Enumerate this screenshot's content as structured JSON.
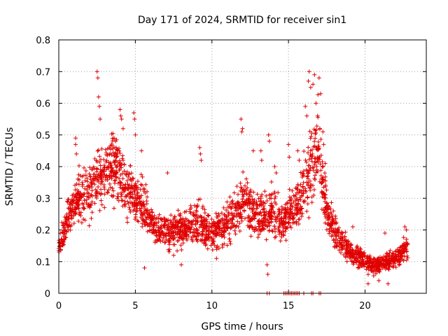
{
  "chart_data": {
    "type": "scatter",
    "title": "Day 171 of 2024, SRMTID for receiver sin1",
    "xlabel": "GPS time / hours",
    "ylabel": "SRMTID / TECUs",
    "xlim": [
      0,
      24
    ],
    "ylim": [
      0,
      0.8
    ],
    "xticks": [
      0,
      5,
      10,
      15,
      20
    ],
    "xtick_labels": [
      "0",
      "5",
      "10",
      "15",
      "20"
    ],
    "yticks": [
      0,
      0.1,
      0.2,
      0.3,
      0.4,
      0.5,
      0.6,
      0.7,
      0.8
    ],
    "ytick_labels": [
      "0",
      "0.1",
      "0.2",
      "0.3",
      "0.4",
      "0.5",
      "0.6",
      "0.7",
      "0.8"
    ],
    "grid": true,
    "marker": "+",
    "color": "#e00000",
    "series": [
      {
        "name": "SRMTID",
        "trend": {
          "x": [
            0,
            0.5,
            1,
            1.5,
            2,
            2.5,
            3,
            3.5,
            4,
            4.5,
            5,
            5.5,
            6,
            6.5,
            7,
            7.5,
            8,
            8.5,
            9,
            9.5,
            10,
            10.5,
            11,
            11.5,
            12,
            12.5,
            13,
            13.5,
            14,
            14.5,
            15,
            15.5,
            16,
            16.5,
            17,
            17.5,
            18,
            18.5,
            19,
            19.5,
            20,
            20.5,
            21,
            21.5,
            22,
            22.5,
            22.8
          ],
          "y": [
            0.15,
            0.22,
            0.28,
            0.31,
            0.33,
            0.36,
            0.38,
            0.4,
            0.37,
            0.33,
            0.3,
            0.28,
            0.23,
            0.2,
            0.19,
            0.2,
            0.2,
            0.21,
            0.22,
            0.2,
            0.19,
            0.21,
            0.22,
            0.25,
            0.3,
            0.27,
            0.25,
            0.24,
            0.25,
            0.22,
            0.25,
            0.28,
            0.32,
            0.4,
            0.45,
            0.25,
            0.2,
            0.16,
            0.13,
            0.12,
            0.1,
            0.09,
            0.09,
            0.1,
            0.11,
            0.13,
            0.15
          ],
          "spread": [
            0.03,
            0.05,
            0.07,
            0.07,
            0.08,
            0.09,
            0.09,
            0.09,
            0.09,
            0.08,
            0.07,
            0.07,
            0.06,
            0.05,
            0.05,
            0.05,
            0.05,
            0.05,
            0.06,
            0.06,
            0.05,
            0.06,
            0.06,
            0.07,
            0.08,
            0.07,
            0.06,
            0.07,
            0.07,
            0.06,
            0.07,
            0.08,
            0.09,
            0.12,
            0.12,
            0.06,
            0.05,
            0.04,
            0.04,
            0.04,
            0.03,
            0.03,
            0.03,
            0.03,
            0.03,
            0.04,
            0.03
          ]
        },
        "points_per_hour": 110,
        "excursions": [
          [
            1.1,
            0.49
          ],
          [
            1.1,
            0.47
          ],
          [
            1.15,
            0.44
          ],
          [
            2.5,
            0.7
          ],
          [
            2.55,
            0.68
          ],
          [
            2.6,
            0.62
          ],
          [
            2.65,
            0.59
          ],
          [
            2.7,
            0.55
          ],
          [
            3.6,
            0.49
          ],
          [
            3.7,
            0.48
          ],
          [
            4.0,
            0.58
          ],
          [
            4.05,
            0.56
          ],
          [
            4.1,
            0.55
          ],
          [
            4.2,
            0.52
          ],
          [
            4.2,
            0.42
          ],
          [
            4.9,
            0.57
          ],
          [
            4.95,
            0.55
          ],
          [
            5.0,
            0.5
          ],
          [
            5.4,
            0.45
          ],
          [
            7.1,
            0.38
          ],
          [
            9.2,
            0.46
          ],
          [
            9.25,
            0.44
          ],
          [
            9.3,
            0.42
          ],
          [
            11.9,
            0.55
          ],
          [
            11.95,
            0.51
          ],
          [
            12.0,
            0.52
          ],
          [
            12.7,
            0.45
          ],
          [
            13.2,
            0.45
          ],
          [
            13.25,
            0.42
          ],
          [
            13.7,
            0.5
          ],
          [
            13.75,
            0.48
          ],
          [
            14.1,
            0.4
          ],
          [
            14.2,
            0.38
          ],
          [
            15.0,
            0.47
          ],
          [
            15.05,
            0.43
          ],
          [
            15.6,
            0.45
          ],
          [
            15.7,
            0.42
          ],
          [
            16.1,
            0.59
          ],
          [
            16.2,
            0.56
          ],
          [
            16.3,
            0.67
          ],
          [
            16.35,
            0.7
          ],
          [
            16.45,
            0.65
          ],
          [
            16.6,
            0.66
          ],
          [
            16.7,
            0.69
          ],
          [
            16.8,
            0.6
          ],
          [
            16.9,
            0.56
          ],
          [
            17.0,
            0.68
          ],
          [
            17.05,
            0.52
          ],
          [
            17.1,
            0.63
          ],
          [
            17.25,
            0.51
          ],
          [
            17.3,
            0.47
          ],
          [
            17.4,
            0.41
          ],
          [
            13.6,
            0.09
          ],
          [
            13.65,
            0.06
          ],
          [
            5.6,
            0.08
          ],
          [
            7.5,
            0.12
          ],
          [
            8.0,
            0.09
          ],
          [
            10.3,
            0.11
          ],
          [
            20.2,
            0.03
          ],
          [
            20.9,
            0.04
          ],
          [
            21.5,
            0.03
          ],
          [
            22.6,
            0.21
          ],
          [
            22.7,
            0.2
          ],
          [
            21.3,
            0.19
          ],
          [
            19.2,
            0.21
          ]
        ],
        "zero_band": [
          13.6,
          13.75,
          14.7,
          14.8,
          14.9,
          15.0,
          15.1,
          15.2,
          15.3,
          15.4,
          15.5,
          15.6,
          15.7,
          16.0,
          16.5,
          16.6,
          17.0,
          17.1
        ]
      }
    ]
  }
}
